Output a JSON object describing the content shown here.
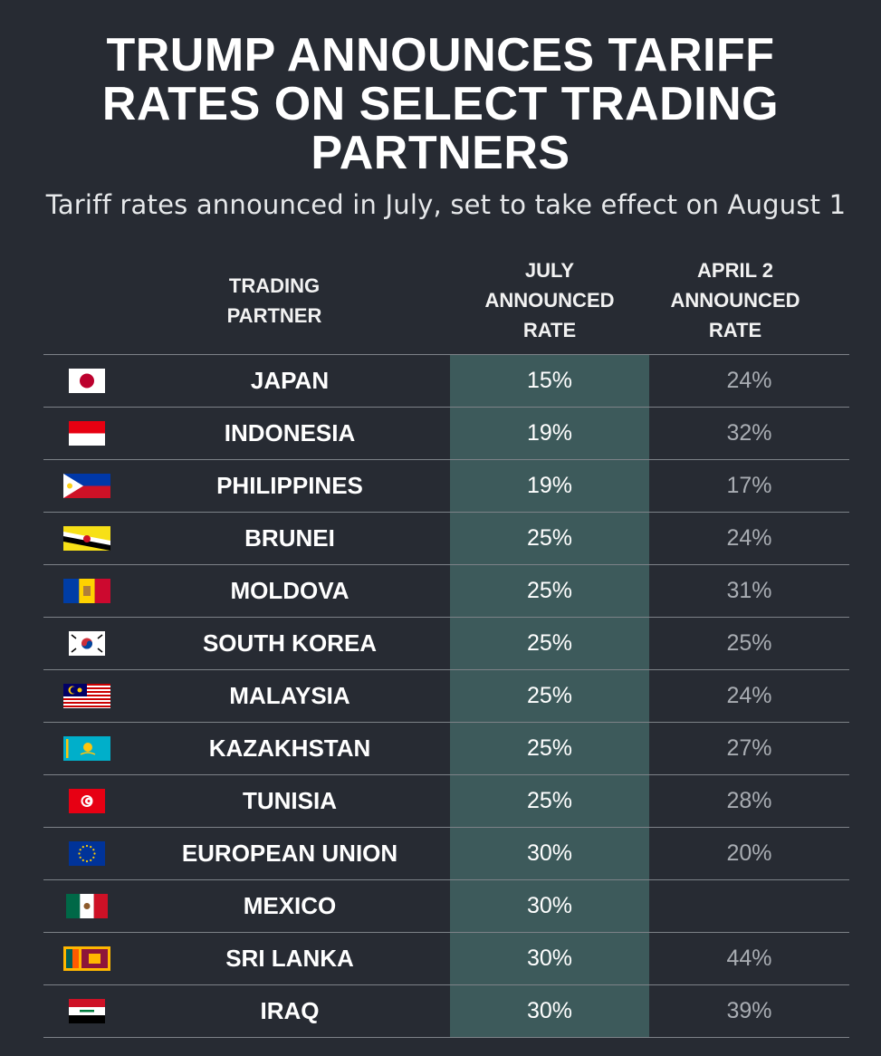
{
  "title": [
    "TRUMP ANNOUNCES TARIFF",
    "RATES ON SELECT TRADING",
    "PARTNERS"
  ],
  "subtitle": "Tariff rates announced in July, set to take effect on August 1",
  "headers": {
    "partner": [
      "TRADING",
      "PARTNER"
    ],
    "july": [
      "JULY",
      "ANNOUNCED",
      "RATE"
    ],
    "april": [
      "APRIL 2",
      "ANNOUNCED",
      "RATE"
    ]
  },
  "colors": {
    "background": "#272b33",
    "july_column": "#3d5a5b",
    "rule": "#7d8288"
  },
  "chart_data": {
    "type": "table",
    "title": "TRUMP ANNOUNCES TARIFF RATES ON SELECT TRADING PARTNERS",
    "subtitle": "Tariff rates announced in July, set to take effect on August 1",
    "columns": [
      "TRADING PARTNER",
      "JULY ANNOUNCED RATE",
      "APRIL 2 ANNOUNCED RATE"
    ],
    "rows": [
      {
        "flag": "japan-flag-icon",
        "partner": "JAPAN",
        "july": "15%",
        "april": "24%"
      },
      {
        "flag": "indonesia-flag-icon",
        "partner": "INDONESIA",
        "july": "19%",
        "april": "32%"
      },
      {
        "flag": "philippines-flag-icon",
        "partner": "PHILIPPINES",
        "july": "19%",
        "april": "17%"
      },
      {
        "flag": "brunei-flag-icon",
        "partner": "BRUNEI",
        "july": "25%",
        "april": "24%"
      },
      {
        "flag": "moldova-flag-icon",
        "partner": "MOLDOVA",
        "july": "25%",
        "april": "31%"
      },
      {
        "flag": "south-korea-flag-icon",
        "partner": "SOUTH KOREA",
        "july": "25%",
        "april": "25%"
      },
      {
        "flag": "malaysia-flag-icon",
        "partner": "MALAYSIA",
        "july": "25%",
        "april": "24%"
      },
      {
        "flag": "kazakhstan-flag-icon",
        "partner": "KAZAKHSTAN",
        "july": "25%",
        "april": "27%"
      },
      {
        "flag": "tunisia-flag-icon",
        "partner": "TUNISIA",
        "july": "25%",
        "april": "28%"
      },
      {
        "flag": "european-union-flag-icon",
        "partner": "EUROPEAN UNION",
        "july": "30%",
        "april": "20%"
      },
      {
        "flag": "mexico-flag-icon",
        "partner": "MEXICO",
        "july": "30%",
        "april": ""
      },
      {
        "flag": "sri-lanka-flag-icon",
        "partner": "SRI LANKA",
        "july": "30%",
        "april": "44%"
      },
      {
        "flag": "iraq-flag-icon",
        "partner": "IRAQ",
        "july": "30%",
        "april": "39%"
      }
    ]
  }
}
